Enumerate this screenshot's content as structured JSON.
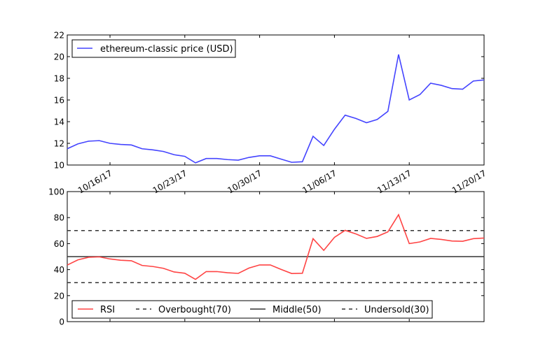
{
  "chart_data": [
    {
      "type": "line",
      "x_tick_labels": [
        "10/16/17",
        "10/23/17",
        "10/30/17",
        "11/06/17",
        "11/13/17",
        "11/20/17"
      ],
      "x": [
        "2017-10-12",
        "2017-10-13",
        "2017-10-14",
        "2017-10-15",
        "2017-10-16",
        "2017-10-17",
        "2017-10-18",
        "2017-10-19",
        "2017-10-20",
        "2017-10-21",
        "2017-10-22",
        "2017-10-23",
        "2017-10-24",
        "2017-10-25",
        "2017-10-26",
        "2017-10-27",
        "2017-10-28",
        "2017-10-29",
        "2017-10-30",
        "2017-10-31",
        "2017-11-01",
        "2017-11-02",
        "2017-11-03",
        "2017-11-04",
        "2017-11-05",
        "2017-11-06",
        "2017-11-07",
        "2017-11-08",
        "2017-11-09",
        "2017-11-10",
        "2017-11-11",
        "2017-11-12",
        "2017-11-13",
        "2017-11-14",
        "2017-11-15",
        "2017-11-16",
        "2017-11-17",
        "2017-11-18",
        "2017-11-19",
        "2017-11-20"
      ],
      "ylim": [
        10,
        22
      ],
      "y_ticks": [
        10,
        12,
        14,
        16,
        18,
        20,
        22
      ],
      "legend_loc": "upper-left",
      "series": [
        {
          "name": "ethereum-classic price (USD)",
          "color": "#4444ff",
          "values": [
            11.5,
            11.95,
            12.2,
            12.25,
            12.0,
            11.9,
            11.85,
            11.5,
            11.4,
            11.25,
            10.95,
            10.8,
            10.2,
            10.6,
            10.6,
            10.5,
            10.45,
            10.7,
            10.85,
            10.85,
            10.55,
            10.25,
            10.3,
            12.65,
            11.8,
            13.3,
            14.6,
            14.3,
            13.9,
            14.2,
            14.95,
            20.2,
            16.0,
            16.5,
            17.55,
            17.35,
            17.05,
            17.0,
            17.75,
            17.85
          ]
        }
      ]
    },
    {
      "type": "line",
      "x": [
        "2017-10-12",
        "2017-10-13",
        "2017-10-14",
        "2017-10-15",
        "2017-10-16",
        "2017-10-17",
        "2017-10-18",
        "2017-10-19",
        "2017-10-20",
        "2017-10-21",
        "2017-10-22",
        "2017-10-23",
        "2017-10-24",
        "2017-10-25",
        "2017-10-26",
        "2017-10-27",
        "2017-10-28",
        "2017-10-29",
        "2017-10-30",
        "2017-10-31",
        "2017-11-01",
        "2017-11-02",
        "2017-11-03",
        "2017-11-04",
        "2017-11-05",
        "2017-11-06",
        "2017-11-07",
        "2017-11-08",
        "2017-11-09",
        "2017-11-10",
        "2017-11-11",
        "2017-11-12",
        "2017-11-13",
        "2017-11-14",
        "2017-11-15",
        "2017-11-16",
        "2017-11-17",
        "2017-11-18",
        "2017-11-19",
        "2017-11-20"
      ],
      "ylim": [
        0,
        100
      ],
      "y_ticks": [
        0,
        20,
        40,
        60,
        80,
        100
      ],
      "legend_loc": "lower-left",
      "series": [
        {
          "name": "RSI",
          "color": "#ff4444",
          "values": [
            43.5,
            47.5,
            49.5,
            49.8,
            48.2,
            47.2,
            46.8,
            43.2,
            42.4,
            41,
            38.2,
            37.2,
            32.5,
            38.5,
            38.5,
            37.6,
            37.1,
            41.2,
            43.6,
            43.6,
            40.2,
            37,
            37.2,
            63.8,
            54.8,
            64.8,
            70.2,
            67.5,
            64,
            65.5,
            69,
            82.2,
            60,
            61.3,
            64,
            63.2,
            62,
            61.8,
            63.8,
            64.3
          ]
        },
        {
          "name": "Overbought(70)",
          "color": "#333333",
          "style": "dashed",
          "level": 70
        },
        {
          "name": "Middle(50)",
          "color": "#333333",
          "style": "solid",
          "level": 50
        },
        {
          "name": "Undersold(30)",
          "color": "#333333",
          "style": "dashed",
          "level": 30
        }
      ]
    }
  ]
}
